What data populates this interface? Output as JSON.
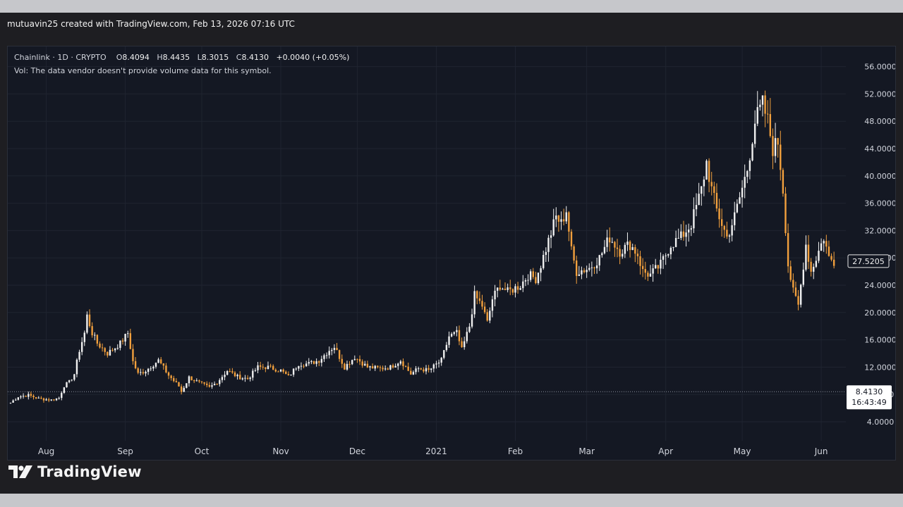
{
  "credit": "mutuavin25 created with TradingView.com, Feb 13, 2026 07:16 UTC",
  "legend": {
    "symbol": "Chainlink · 1D · CRYPTO",
    "open_label": "O",
    "open": "8.4094",
    "high_label": "H",
    "high": "8.4435",
    "low_label": "L",
    "low": "8.3015",
    "close_label": "C",
    "close": "8.4130",
    "change": "+0.0040 (+0.05%)",
    "volume_note": "Vol: The data vendor doesn't provide volume data for this symbol."
  },
  "brand": "TradingView",
  "colors": {
    "up": "#f0f0f0",
    "down": "#f2a03d",
    "background": "#141823",
    "grid": "#1f2430",
    "axis_text": "#d1d4dc"
  },
  "chart_data": {
    "type": "candlestick",
    "x_tick_labels": [
      "Aug",
      "Sep",
      "Oct",
      "Nov",
      "Dec",
      "2021",
      "Feb",
      "Mar",
      "Apr",
      "May",
      "Jun"
    ],
    "y_tick_labels": [
      "4.0000",
      "8.0000",
      "12.0000",
      "16.0000",
      "20.0000",
      "24.0000",
      "28.0000",
      "32.0000",
      "36.0000",
      "40.0000",
      "44.0000",
      "48.0000",
      "52.0000",
      "56.0000"
    ],
    "ylim": [
      0,
      58
    ],
    "x_range": [
      "2020-07-18",
      "2021-06-09"
    ],
    "current_price_label": "27.5205",
    "last_close_label": "8.4130",
    "countdown_label": "16:43:49",
    "closes": [
      [
        "2020-07-18",
        6.8
      ],
      [
        "2020-07-21",
        7.7
      ],
      [
        "2020-07-25",
        7.9
      ],
      [
        "2020-07-29",
        7.4
      ],
      [
        "2020-08-03",
        7.2
      ],
      [
        "2020-08-06",
        7.5
      ],
      [
        "2020-08-08",
        9.3
      ],
      [
        "2020-08-10",
        9.8
      ],
      [
        "2020-08-12",
        11.0
      ],
      [
        "2020-08-14",
        14.5
      ],
      [
        "2020-08-16",
        17.0
      ],
      [
        "2020-08-17",
        19.5
      ],
      [
        "2020-08-19",
        17.0
      ],
      [
        "2020-08-21",
        15.5
      ],
      [
        "2020-08-25",
        14.0
      ],
      [
        "2020-08-30",
        15.5
      ],
      [
        "2020-09-02",
        17.0
      ],
      [
        "2020-09-04",
        12.8
      ],
      [
        "2020-09-06",
        11.0
      ],
      [
        "2020-09-09",
        11.5
      ],
      [
        "2020-09-14",
        13.0
      ],
      [
        "2020-09-18",
        10.8
      ],
      [
        "2020-09-22",
        9.2
      ],
      [
        "2020-09-23",
        8.4
      ],
      [
        "2020-09-26",
        10.5
      ],
      [
        "2020-09-30",
        9.7
      ],
      [
        "2020-10-04",
        9.0
      ],
      [
        "2020-10-07",
        9.8
      ],
      [
        "2020-10-11",
        11.5
      ],
      [
        "2020-10-15",
        10.6
      ],
      [
        "2020-10-19",
        10.3
      ],
      [
        "2020-10-23",
        12.0
      ],
      [
        "2020-10-27",
        12.0
      ],
      [
        "2020-11-01",
        11.5
      ],
      [
        "2020-11-04",
        10.6
      ],
      [
        "2020-11-08",
        12.5
      ],
      [
        "2020-11-12",
        12.5
      ],
      [
        "2020-11-16",
        13.0
      ],
      [
        "2020-11-20",
        14.5
      ],
      [
        "2020-11-22",
        15.0
      ],
      [
        "2020-11-26",
        12.0
      ],
      [
        "2020-11-30",
        13.5
      ],
      [
        "2020-12-05",
        12.0
      ],
      [
        "2020-12-10",
        11.8
      ],
      [
        "2020-12-14",
        12.0
      ],
      [
        "2020-12-18",
        13.0
      ],
      [
        "2020-12-22",
        11.0
      ],
      [
        "2020-12-25",
        11.8
      ],
      [
        "2020-12-29",
        11.5
      ],
      [
        "2021-01-03",
        13.0
      ],
      [
        "2021-01-06",
        16.5
      ],
      [
        "2021-01-09",
        17.0
      ],
      [
        "2021-01-11",
        14.5
      ],
      [
        "2021-01-14",
        18.0
      ],
      [
        "2021-01-16",
        22.5
      ],
      [
        "2021-01-19",
        21.0
      ],
      [
        "2021-01-21",
        18.5
      ],
      [
        "2021-01-23",
        22.0
      ],
      [
        "2021-01-26",
        24.0
      ],
      [
        "2021-01-29",
        23.0
      ],
      [
        "2021-02-03",
        24.0
      ],
      [
        "2021-02-06",
        25.5
      ],
      [
        "2021-02-09",
        25.0
      ],
      [
        "2021-02-11",
        27.0
      ],
      [
        "2021-02-14",
        30.5
      ],
      [
        "2021-02-17",
        34.0
      ],
      [
        "2021-02-19",
        33.0
      ],
      [
        "2021-02-21",
        35.0
      ],
      [
        "2021-02-23",
        29.0
      ],
      [
        "2021-02-25",
        26.0
      ],
      [
        "2021-03-02",
        26.5
      ],
      [
        "2021-03-06",
        28.0
      ],
      [
        "2021-03-10",
        31.0
      ],
      [
        "2021-03-14",
        29.0
      ],
      [
        "2021-03-18",
        30.0
      ],
      [
        "2021-03-21",
        28.5
      ],
      [
        "2021-03-23",
        26.0
      ],
      [
        "2021-03-26",
        25.5
      ],
      [
        "2021-03-30",
        27.0
      ],
      [
        "2021-04-03",
        30.0
      ],
      [
        "2021-04-07",
        31.0
      ],
      [
        "2021-04-11",
        33.0
      ],
      [
        "2021-04-15",
        38.0
      ],
      [
        "2021-04-17",
        42.0
      ],
      [
        "2021-04-19",
        38.0
      ],
      [
        "2021-04-21",
        35.0
      ],
      [
        "2021-04-25",
        31.0
      ],
      [
        "2021-04-28",
        34.0
      ],
      [
        "2021-05-03",
        41.0
      ],
      [
        "2021-05-06",
        48.0
      ],
      [
        "2021-05-09",
        50.5
      ],
      [
        "2021-05-11",
        48.0
      ],
      [
        "2021-05-13",
        44.0
      ],
      [
        "2021-05-15",
        45.0
      ],
      [
        "2021-05-17",
        38.0
      ],
      [
        "2021-05-19",
        27.0
      ],
      [
        "2021-05-21",
        23.0
      ],
      [
        "2021-05-23",
        21.0
      ],
      [
        "2021-05-26",
        30.0
      ],
      [
        "2021-05-28",
        26.0
      ],
      [
        "2021-05-30",
        28.0
      ],
      [
        "2021-06-02",
        31.0
      ],
      [
        "2021-06-04",
        28.0
      ],
      [
        "2021-06-06",
        27.5
      ]
    ]
  }
}
